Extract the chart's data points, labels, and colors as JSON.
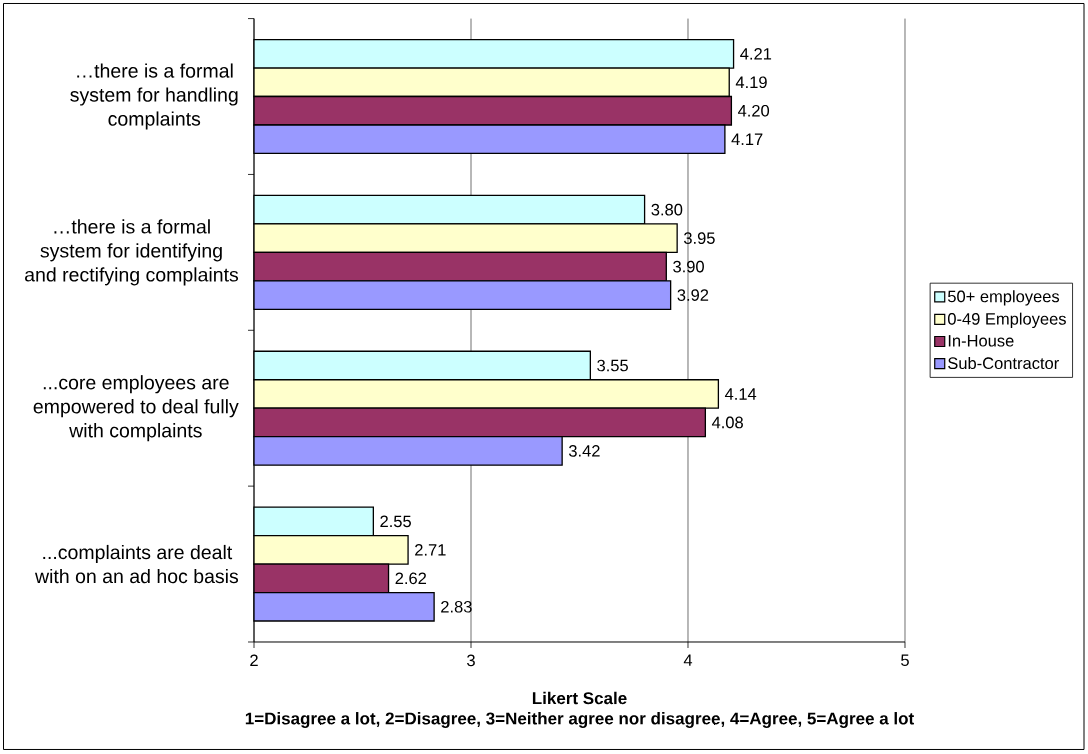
{
  "chart_data": {
    "type": "bar",
    "orientation": "horizontal",
    "categories": [
      "…there is a formal system for handling complaints",
      "…there is a formal system for identifying and rectifying complaints",
      "...core employees are empowered to deal fully with complaints",
      "...complaints are dealt with on an ad hoc basis"
    ],
    "series": [
      {
        "name": "50+ employees",
        "color": "#ccffff",
        "values": [
          4.21,
          3.8,
          3.55,
          2.55
        ],
        "value_labels": [
          "4.21",
          "3.80",
          "3.55",
          "2.55"
        ]
      },
      {
        "name": "0-49 Employees",
        "color": "#ffffcc",
        "values": [
          4.19,
          3.95,
          4.14,
          2.71
        ],
        "value_labels": [
          "4.19",
          "3.95",
          "4.14",
          "2.71"
        ]
      },
      {
        "name": "In-House",
        "color": "#993366",
        "values": [
          4.2,
          3.9,
          4.08,
          2.62
        ],
        "value_labels": [
          "4.20",
          "3.90",
          "4.08",
          "2.62"
        ]
      },
      {
        "name": "Sub-Contractor",
        "color": "#9999ff",
        "values": [
          4.17,
          3.92,
          3.42,
          2.83
        ],
        "value_labels": [
          "4.17",
          "3.92",
          "3.42",
          "2.83"
        ]
      }
    ],
    "xlabel": "Likert Scale",
    "annotations": [
      "1=Disagree a lot, 2=Disagree, 3=Neither agree nor disagree, 4=Agree, 5=Agree a lot"
    ],
    "xlim": [
      2,
      5
    ],
    "xticks": [
      2,
      3,
      4,
      5
    ],
    "grid": "x",
    "legend": "right"
  }
}
